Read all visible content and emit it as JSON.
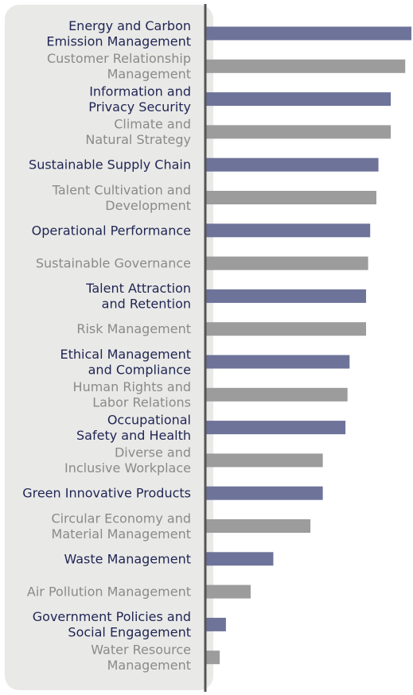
{
  "chart_data": {
    "type": "bar",
    "orientation": "horizontal",
    "title": "",
    "xlabel": "",
    "ylabel": "",
    "xlim": [
      0,
      100
    ],
    "grid": false,
    "categories": [
      [
        "Energy and Carbon",
        "Emission Management"
      ],
      [
        "Customer Relationship",
        "Management"
      ],
      [
        "Information and",
        "Privacy Security"
      ],
      [
        "Climate and",
        "Natural Strategy"
      ],
      [
        "Sustainable Supply Chain"
      ],
      [
        "Talent Cultivation and",
        "Development"
      ],
      [
        "Operational Performance"
      ],
      [
        "Sustainable Governance"
      ],
      [
        "Talent Attraction",
        "and Retention"
      ],
      [
        "Risk Management"
      ],
      [
        "Ethical Management",
        "and Compliance"
      ],
      [
        "Human Rights and",
        "Labor Relations"
      ],
      [
        "Occupational",
        "Safety and Health"
      ],
      [
        "Diverse and",
        "Inclusive Workplace"
      ],
      [
        "Green Innovative Products"
      ],
      [
        "Circular Economy and",
        "Material Management"
      ],
      [
        "Waste Management"
      ],
      [
        "Air Pollution Management"
      ],
      [
        "Government Policies and",
        "Social Engagement"
      ],
      [
        "Water Resource",
        "Management"
      ]
    ],
    "values": [
      100,
      97,
      90,
      90,
      84,
      83,
      80,
      79,
      78,
      78,
      70,
      69,
      68,
      57,
      57,
      51,
      33,
      22,
      10,
      7
    ],
    "colors": {
      "highlight_bar": "#6e7399",
      "other_bar": "#9c9c9c",
      "highlight_text": "#1f2554",
      "other_text": "#8a8a8a",
      "axis": "#555555",
      "panel": "#e9e9e7"
    }
  }
}
